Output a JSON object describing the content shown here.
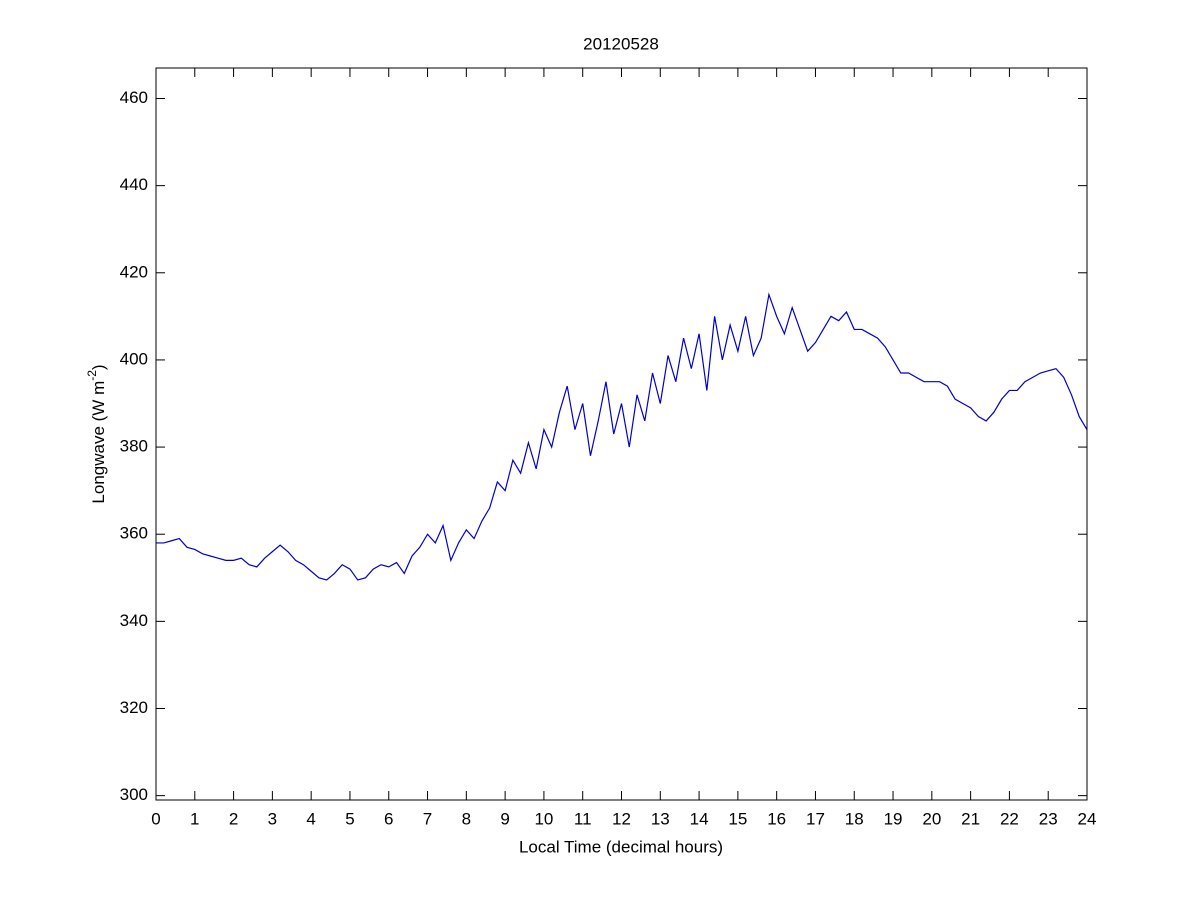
{
  "chart_data": {
    "type": "line",
    "title": "20120528",
    "xlabel": "Local Time (decimal hours)",
    "ylabel": [
      "Longwave (W m",
      "-2",
      ")"
    ],
    "x": [
      0,
      0.2,
      0.4,
      0.6,
      0.8,
      1,
      1.2,
      1.4,
      1.6,
      1.8,
      2,
      2.2,
      2.4,
      2.6,
      2.8,
      3,
      3.2,
      3.4,
      3.6,
      3.8,
      4,
      4.2,
      4.4,
      4.6,
      4.8,
      5,
      5.2,
      5.4,
      5.6,
      5.8,
      6,
      6.2,
      6.4,
      6.6,
      6.8,
      7,
      7.2,
      7.4,
      7.6,
      7.8,
      8,
      8.2,
      8.4,
      8.6,
      8.8,
      9,
      9.2,
      9.4,
      9.6,
      9.8,
      10,
      10.2,
      10.4,
      10.6,
      10.8,
      11,
      11.2,
      11.4,
      11.6,
      11.8,
      12,
      12.2,
      12.4,
      12.6,
      12.8,
      13,
      13.2,
      13.4,
      13.6,
      13.8,
      14,
      14.2,
      14.4,
      14.6,
      14.8,
      15,
      15.2,
      15.4,
      15.6,
      15.8,
      16,
      16.2,
      16.4,
      16.6,
      16.8,
      17,
      17.2,
      17.4,
      17.6,
      17.8,
      18,
      18.2,
      18.4,
      18.6,
      18.8,
      19,
      19.2,
      19.4,
      19.6,
      19.8,
      20,
      20.2,
      20.4,
      20.6,
      20.8,
      21,
      21.2,
      21.4,
      21.6,
      21.8,
      22,
      22.2,
      22.4,
      22.6,
      22.8,
      23,
      23.2,
      23.4,
      23.6,
      23.8,
      24
    ],
    "series": [
      {
        "color": "#0000cc",
        "values": [
          358,
          358,
          358.5,
          359,
          357,
          356.5,
          355.5,
          355,
          354.5,
          354,
          354,
          354.5,
          353,
          352.5,
          354.5,
          356,
          357.5,
          356,
          354,
          353,
          351.5,
          350,
          349.5,
          351,
          353,
          352,
          349.5,
          350,
          352,
          353,
          352.5,
          353.5,
          351,
          355,
          357,
          360,
          358,
          362,
          354,
          358,
          361,
          359,
          363,
          366,
          372,
          370,
          377,
          374,
          381,
          375,
          384,
          380,
          388,
          394,
          384,
          390,
          378,
          386,
          395,
          383,
          390,
          380,
          392,
          386,
          397,
          390,
          401,
          395,
          405,
          398,
          406,
          393,
          410,
          400,
          408,
          402,
          410,
          401,
          405,
          415,
          410,
          406,
          412,
          407,
          402,
          404,
          407,
          410,
          409,
          411,
          407,
          407,
          406,
          405,
          403,
          400,
          397,
          397,
          396,
          395,
          395,
          395,
          394,
          391,
          390,
          389,
          387,
          386,
          388,
          391,
          393,
          393,
          395,
          396,
          397,
          397.5,
          398,
          396,
          392,
          387,
          384
        ]
      }
    ],
    "xlim": [
      0,
      24
    ],
    "xticks": [
      0,
      1,
      2,
      3,
      4,
      5,
      6,
      7,
      8,
      9,
      10,
      11,
      12,
      13,
      14,
      15,
      16,
      17,
      18,
      19,
      20,
      21,
      22,
      23,
      24
    ],
    "ylim": [
      299,
      467
    ],
    "yticks": [
      300,
      320,
      340,
      360,
      380,
      400,
      420,
      440,
      460
    ]
  }
}
